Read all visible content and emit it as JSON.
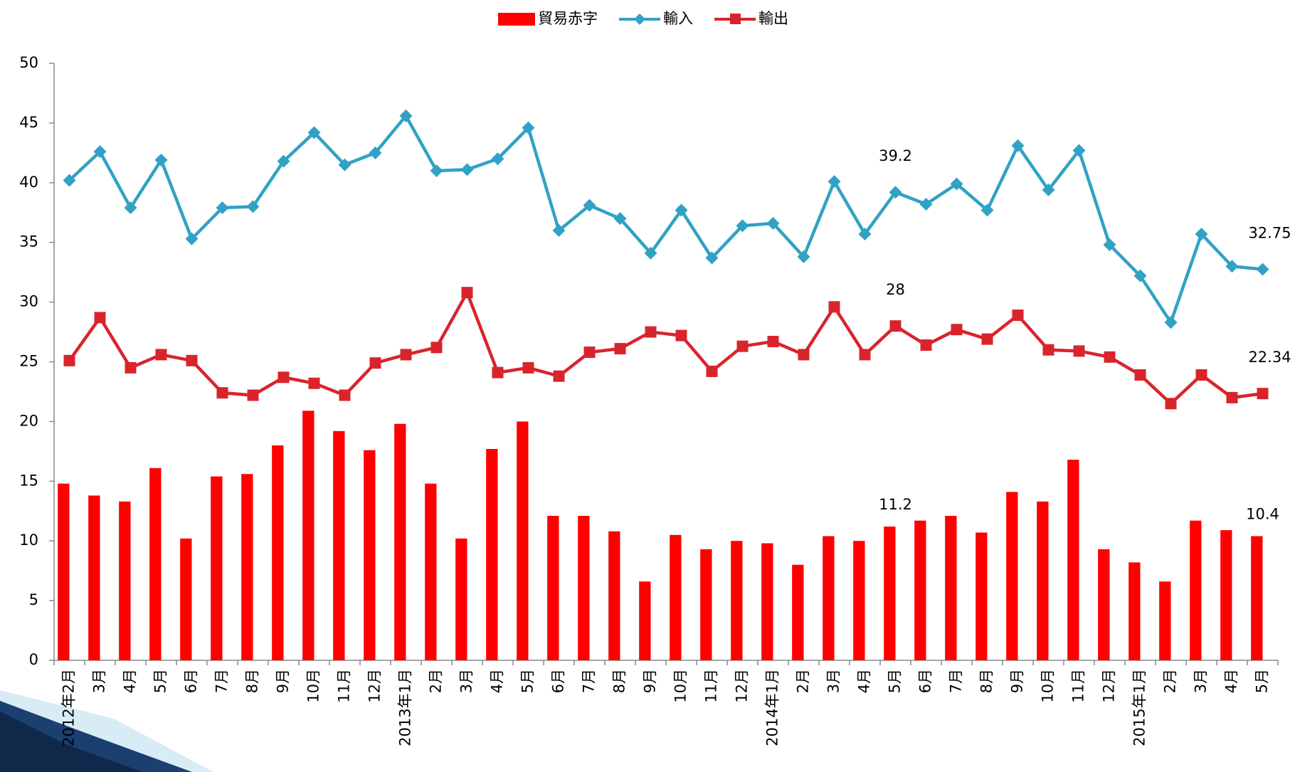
{
  "chart_data": {
    "type": "bar-line",
    "categories": [
      "2012年2月",
      "3月",
      "4月",
      "5月",
      "6月",
      "7月",
      "8月",
      "9月",
      "10月",
      "11月",
      "12月",
      "2013年1月",
      "2月",
      "3月",
      "4月",
      "5月",
      "6月",
      "7月",
      "8月",
      "9月",
      "10月",
      "11月",
      "12月",
      "2014年1月",
      "2月",
      "3月",
      "4月",
      "5月",
      "6月",
      "7月",
      "8月",
      "9月",
      "10月",
      "11月",
      "12月",
      "2015年1月",
      "2月",
      "3月",
      "4月",
      "5月"
    ],
    "series": [
      {
        "name": "貿易赤字",
        "type": "bar",
        "color": "#ff0000",
        "values": [
          14.8,
          13.8,
          13.3,
          16.1,
          10.2,
          15.4,
          15.6,
          18.0,
          20.9,
          19.2,
          17.6,
          19.8,
          14.8,
          10.2,
          17.7,
          20.0,
          12.1,
          12.1,
          10.8,
          6.6,
          10.5,
          9.3,
          10.0,
          9.8,
          8.0,
          10.4,
          10.0,
          11.2,
          11.7,
          12.1,
          10.7,
          14.1,
          13.3,
          16.8,
          9.3,
          8.2,
          6.6,
          11.7,
          10.9,
          10.4
        ],
        "value_labels": [
          null,
          null,
          null,
          null,
          null,
          null,
          null,
          null,
          null,
          null,
          null,
          null,
          null,
          null,
          null,
          null,
          null,
          null,
          null,
          null,
          null,
          null,
          null,
          null,
          null,
          null,
          null,
          "11.2",
          null,
          null,
          null,
          null,
          null,
          null,
          null,
          null,
          null,
          null,
          null,
          "10.4"
        ]
      },
      {
        "name": "輸入",
        "type": "line",
        "marker": "diamond",
        "color": "#31a2c4",
        "values": [
          40.2,
          42.6,
          37.9,
          41.9,
          35.3,
          37.9,
          38.0,
          41.8,
          44.2,
          41.5,
          42.5,
          45.6,
          41.0,
          41.1,
          42.0,
          44.6,
          36.0,
          38.1,
          37.0,
          34.1,
          37.7,
          33.7,
          36.4,
          36.6,
          33.8,
          40.1,
          35.7,
          39.2,
          38.2,
          39.9,
          37.7,
          43.1,
          39.4,
          42.7,
          34.8,
          32.2,
          28.3,
          35.7,
          33.0,
          32.75
        ],
        "value_labels": [
          null,
          null,
          null,
          null,
          null,
          null,
          null,
          null,
          null,
          null,
          null,
          null,
          null,
          null,
          null,
          null,
          null,
          null,
          null,
          null,
          null,
          null,
          null,
          null,
          null,
          null,
          null,
          "39.2",
          null,
          null,
          null,
          null,
          null,
          null,
          null,
          null,
          null,
          null,
          null,
          "32.75"
        ]
      },
      {
        "name": "輸出",
        "type": "line",
        "marker": "square",
        "color": "#d9242c",
        "values": [
          25.1,
          28.7,
          24.5,
          25.6,
          25.1,
          22.4,
          22.2,
          23.7,
          23.2,
          22.2,
          24.9,
          25.6,
          26.2,
          30.8,
          24.1,
          24.5,
          23.8,
          25.8,
          26.1,
          27.5,
          27.2,
          24.2,
          26.3,
          26.7,
          25.6,
          29.6,
          25.6,
          28,
          26.4,
          27.7,
          26.9,
          28.9,
          26.0,
          25.9,
          25.4,
          23.9,
          21.5,
          23.9,
          22.0,
          22.34
        ],
        "value_labels": [
          null,
          null,
          null,
          null,
          null,
          null,
          null,
          null,
          null,
          null,
          null,
          null,
          null,
          null,
          null,
          null,
          null,
          null,
          null,
          null,
          null,
          null,
          null,
          null,
          null,
          null,
          null,
          "28",
          null,
          null,
          null,
          null,
          null,
          null,
          null,
          null,
          null,
          null,
          null,
          "22.34"
        ]
      }
    ],
    "ylim": [
      0,
      50
    ],
    "yticks": [
      0,
      5,
      10,
      15,
      20,
      25,
      30,
      35,
      40,
      45,
      50
    ],
    "grid": false,
    "legend": "top"
  }
}
